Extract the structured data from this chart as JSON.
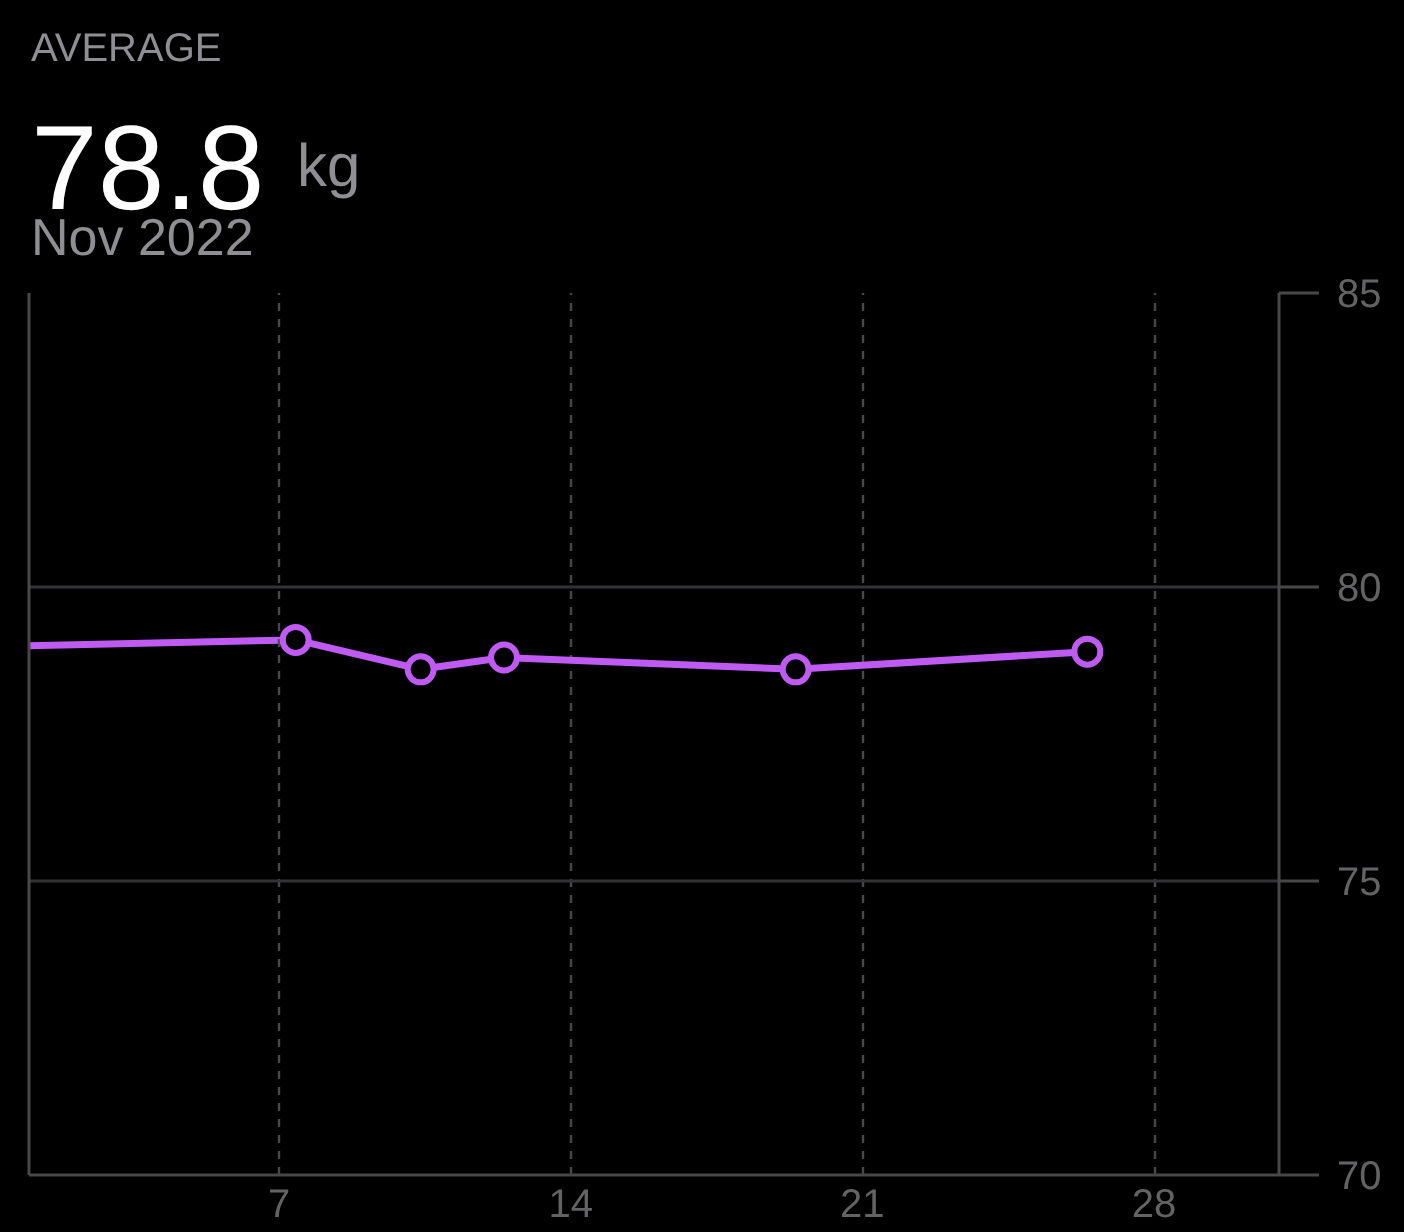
{
  "chart_data": {
    "type": "line",
    "title": "78.8",
    "subtitle": "Nov 2022",
    "annotations": [
      "AVERAGE",
      "kg"
    ],
    "xlim": [
      1,
      31
    ],
    "xticks": [
      7,
      14,
      21,
      28
    ],
    "ylim": [
      70,
      85
    ],
    "yticks": [
      70,
      75,
      80,
      85
    ],
    "grid": true,
    "marker": "circle",
    "line_style": "solid",
    "series": [
      {
        "color": "#bf5af2",
        "x": [
          7.4,
          10.4,
          12.4,
          19.4,
          26.4
        ],
        "values": [
          79.1,
          78.6,
          78.8,
          78.6,
          78.9
        ]
      },
      {
        "color": "#bf5af2",
        "x": [
          1,
          7.4
        ],
        "values": [
          79.0,
          79.1
        ],
        "marker": "none"
      }
    ]
  }
}
